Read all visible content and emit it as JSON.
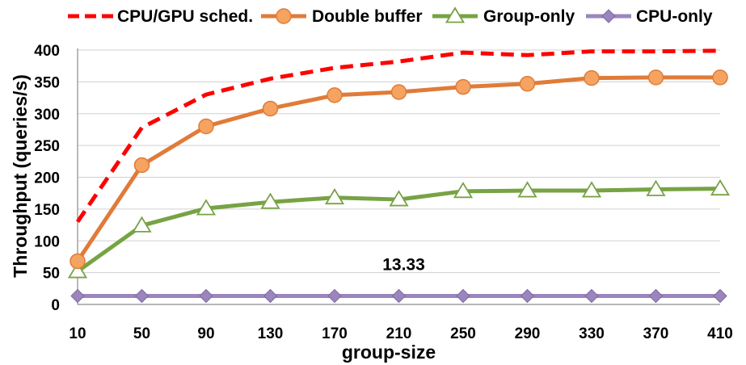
{
  "chart_data": {
    "type": "line",
    "xlabel": "group-size",
    "ylabel": "Throughput (queries/s)",
    "categories": [
      "10",
      "50",
      "90",
      "130",
      "170",
      "210",
      "250",
      "290",
      "330",
      "370",
      "410"
    ],
    "ylim": [
      0,
      400
    ],
    "yticks": [
      "0",
      "50",
      "100",
      "150",
      "200",
      "250",
      "300",
      "350",
      "400"
    ],
    "grid": "horizontal",
    "legend_position": "top",
    "series": [
      {
        "name": "CPU/GPU sched.",
        "color": "#ff0000",
        "style": "dashed",
        "marker": "none",
        "values": [
          130,
          278,
          330,
          355,
          372,
          382,
          396,
          392,
          398,
          398,
          399
        ]
      },
      {
        "name": "Double buffer",
        "color": "#e07b39",
        "style": "solid",
        "marker": "circle",
        "values": [
          68,
          219,
          280,
          308,
          329,
          334,
          342,
          347,
          356,
          357,
          357
        ]
      },
      {
        "name": "Group-only",
        "color": "#77a344",
        "style": "solid",
        "marker": "triangle",
        "values": [
          52,
          124,
          151,
          161,
          168,
          165,
          178,
          179,
          179,
          181,
          182
        ]
      },
      {
        "name": "CPU-only",
        "color": "#9a86bd",
        "style": "solid",
        "marker": "diamond",
        "values": [
          13.33,
          13.33,
          13.33,
          13.33,
          13.33,
          13.33,
          13.33,
          13.33,
          13.33,
          13.33,
          13.33
        ]
      }
    ],
    "annotations": [
      {
        "text": "13.33",
        "x": "210",
        "y": 55
      }
    ]
  }
}
